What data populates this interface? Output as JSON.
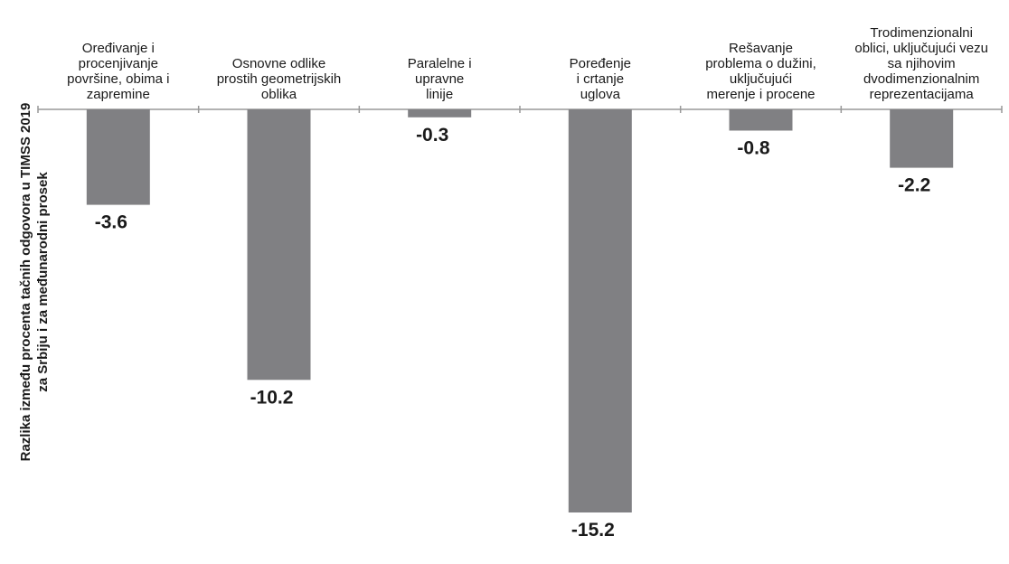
{
  "chart_data": {
    "type": "bar",
    "categories": [
      "Oređivanje i procenjivanje površine, obima i zapremine",
      "Osnovne odlike prostih geometrijskih oblika",
      "Paralelne i upravne linije",
      "Poređenje i crtanje uglova",
      "Rešavanje problema o dužini, uključujući merenje i procene",
      "Trodimenzionalni oblici, uključujući vezu sa njihovim dvodimenzionalnim reprezentacijama"
    ],
    "category_lines": [
      [
        "Oređivanje i",
        "procenjivanje",
        "površine, obima i",
        "zapremine"
      ],
      [
        "Osnovne odlike",
        "prostih geometrijskih",
        "oblika"
      ],
      [
        "Paralelne i",
        "upravne",
        "linije"
      ],
      [
        "Poređenje",
        "i crtanje",
        "uglova"
      ],
      [
        "Rešavanje",
        "problema o dužini,",
        "uključujući",
        "merenje i procene"
      ],
      [
        "Trodimenzionalni",
        "oblici, uključujući vezu",
        "sa njihovim",
        "dvodimenzionalnim",
        "reprezentacijama"
      ]
    ],
    "values": [
      -3.6,
      -10.2,
      -0.3,
      -15.2,
      -0.8,
      -2.2
    ],
    "value_labels": [
      "-3.6",
      "-10.2",
      "-0.3",
      "-15.2",
      "-0.8",
      "-2.2"
    ],
    "ylabel_lines": [
      "Razlika između procenta tačnih odgovora u TIMSS 2019",
      "za Srbiju i za međunarodni prosek"
    ],
    "ylim": [
      -15.2,
      0
    ],
    "grid": false,
    "legend": "none",
    "colors": {
      "bar": "#808083",
      "axis": "#999999",
      "text": "#1a1a1a"
    }
  }
}
